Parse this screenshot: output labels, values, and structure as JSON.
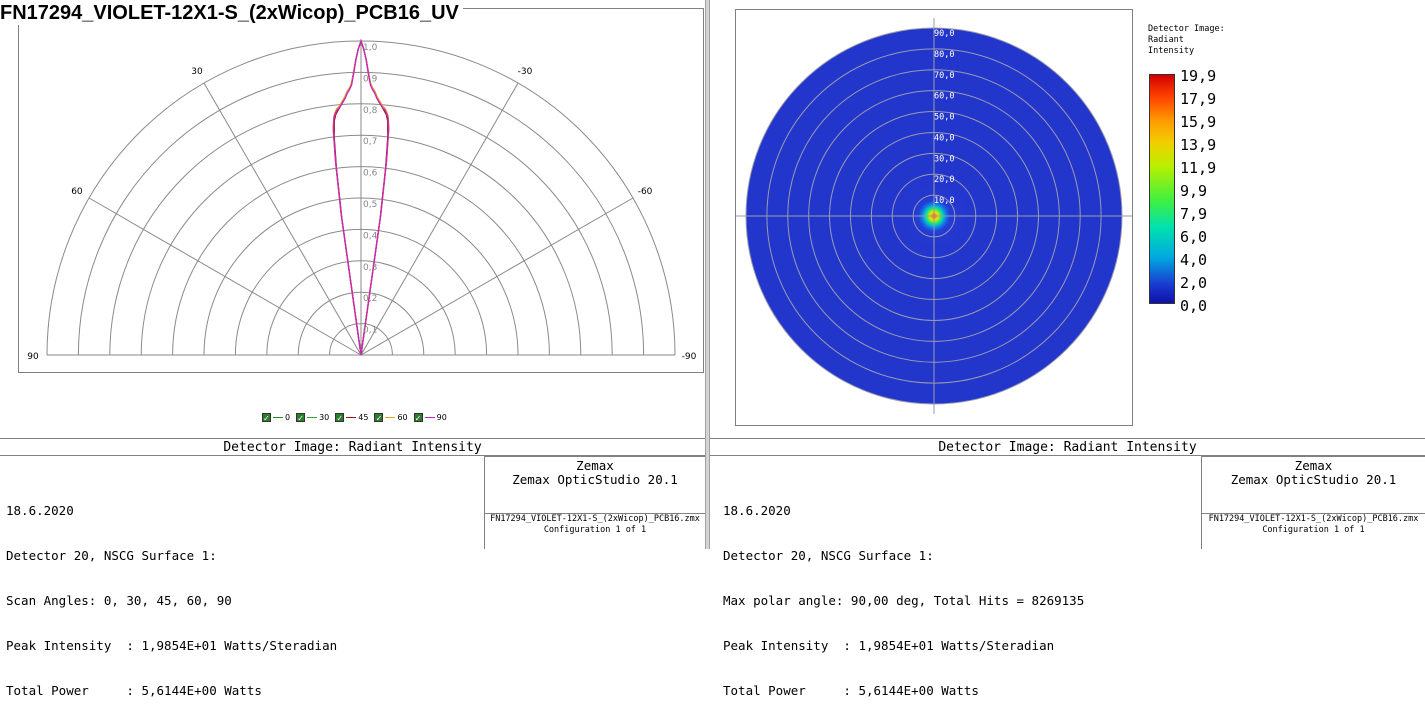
{
  "page_title": "FN17294_VIOLET-12X1-S_(2xWicop)_PCB16_UV",
  "left": {
    "panel_title": "Detector Image: Radiant Intensity",
    "info_lines": [
      "18.6.2020",
      "Detector 20, NSCG Surface 1:",
      "Scan Angles: 0, 30, 45, 60, 90",
      "Peak Intensity  : 1,9854E+01 Watts/Steradian",
      "Total Power     : 5,6144E+00 Watts"
    ],
    "credit_1": "Zemax",
    "credit_2": "Zemax OpticStudio 20.1",
    "file_name": "FN17294_VIOLET-12X1-S_(2xWicop)_PCB16.zmx",
    "config": "Configuration 1 of 1"
  },
  "right": {
    "panel_title": "Detector Image: Radiant Intensity",
    "info_lines": [
      "18.6.2020",
      "Detector 20, NSCG Surface 1:",
      "Max polar angle: 90,00 deg, Total Hits = 8269135",
      "Peak Intensity  : 1,9854E+01 Watts/Steradian",
      "Total Power     : 5,6144E+00 Watts"
    ],
    "credit_1": "Zemax",
    "credit_2": "Zemax OpticStudio 20.1",
    "file_name": "FN17294_VIOLET-12X1-S_(2xWicop)_PCB16.zmx",
    "config": "Configuration 1 of 1"
  },
  "colorbar": {
    "title_lines": [
      "Detector Image:",
      "Radiant",
      "Intensity"
    ],
    "labels": [
      "19,9",
      "17,9",
      "15,9",
      "13,9",
      "11,9",
      "9,9",
      "7,9",
      "6,0",
      "4,0",
      "2,0",
      "0,0"
    ]
  },
  "chart_data": [
    {
      "type": "polar-line",
      "title": "",
      "angle_labels": [
        "90",
        "60",
        "30",
        "-30",
        "-60",
        "-90"
      ],
      "radial_labels": [
        "0,1",
        "0,2",
        "0,3",
        "0,4",
        "0,5",
        "0,6",
        "0,7",
        "0,8",
        "0,9",
        "1,0"
      ],
      "radial_range": [
        0,
        1
      ],
      "angle_range": [
        -90,
        90
      ],
      "series": [
        {
          "name": "0",
          "color": "#1e8c1e",
          "angle": [
            -8.5,
            -8,
            -7.5,
            -7,
            -6.5,
            -6,
            -5.5,
            -5,
            -4.5,
            -4,
            -3.5,
            -3,
            -2.5,
            -2,
            -1.5,
            -1,
            -0.5,
            0,
            0.5,
            1,
            1.5,
            2,
            2.5,
            3,
            3.5,
            4,
            4.5,
            5,
            5.5,
            6,
            6.5,
            7,
            7.5,
            8,
            8.5
          ],
          "r": [
            0.0,
            0.45,
            0.62,
            0.72,
            0.76,
            0.775,
            0.785,
            0.79,
            0.8,
            0.81,
            0.82,
            0.84,
            0.85,
            0.865,
            0.9,
            0.94,
            0.975,
            1.0,
            0.975,
            0.94,
            0.9,
            0.865,
            0.85,
            0.84,
            0.82,
            0.81,
            0.8,
            0.79,
            0.785,
            0.775,
            0.76,
            0.72,
            0.62,
            0.45,
            0.0
          ]
        },
        {
          "name": "30",
          "color": "#3aa33a",
          "angle": [
            -8.5,
            -8,
            -7.5,
            -7,
            -6.5,
            -6,
            -5.5,
            -5,
            -4.5,
            -4,
            -3.5,
            -3,
            -2.5,
            -2,
            -1.5,
            -1,
            -0.5,
            0,
            0.5,
            1,
            1.5,
            2,
            2.5,
            3,
            3.5,
            4,
            4.5,
            5,
            5.5,
            6,
            6.5,
            7,
            7.5,
            8,
            8.5
          ],
          "r": [
            0.0,
            0.44,
            0.61,
            0.71,
            0.755,
            0.77,
            0.78,
            0.79,
            0.8,
            0.81,
            0.825,
            0.84,
            0.85,
            0.865,
            0.9,
            0.94,
            0.975,
            1.0,
            0.975,
            0.94,
            0.9,
            0.865,
            0.85,
            0.84,
            0.825,
            0.81,
            0.8,
            0.79,
            0.78,
            0.77,
            0.755,
            0.71,
            0.61,
            0.44,
            0.0
          ]
        },
        {
          "name": "45",
          "color": "#8b1a1a",
          "angle": [
            -8.5,
            -8,
            -7.5,
            -7,
            -6.5,
            -6,
            -5.5,
            -5,
            -4.5,
            -4,
            -3.5,
            -3,
            -2.5,
            -2,
            -1.5,
            -1,
            -0.5,
            0,
            0.5,
            1,
            1.5,
            2,
            2.5,
            3,
            3.5,
            4,
            4.5,
            5,
            5.5,
            6,
            6.5,
            7,
            7.5,
            8,
            8.5
          ],
          "r": [
            0.0,
            0.44,
            0.6,
            0.7,
            0.75,
            0.77,
            0.78,
            0.79,
            0.8,
            0.81,
            0.825,
            0.84,
            0.85,
            0.865,
            0.9,
            0.94,
            0.975,
            1.0,
            0.975,
            0.94,
            0.9,
            0.865,
            0.85,
            0.84,
            0.825,
            0.81,
            0.8,
            0.79,
            0.78,
            0.77,
            0.75,
            0.7,
            0.6,
            0.44,
            0.0
          ]
        },
        {
          "name": "60",
          "color": "#e0a020",
          "angle": [
            -8.5,
            -8,
            -7.5,
            -7,
            -6.5,
            -6,
            -5.5,
            -5,
            -4.5,
            -4,
            -3.5,
            -3,
            -2.5,
            -2,
            -1.5,
            -1,
            -0.5,
            0,
            0.5,
            1,
            1.5,
            2,
            2.5,
            3,
            3.5,
            4,
            4.5,
            5,
            5.5,
            6,
            6.5,
            7,
            7.5,
            8,
            8.5
          ],
          "r": [
            0.0,
            0.46,
            0.63,
            0.73,
            0.765,
            0.78,
            0.79,
            0.795,
            0.805,
            0.815,
            0.825,
            0.84,
            0.85,
            0.865,
            0.9,
            0.94,
            0.975,
            1.0,
            0.975,
            0.94,
            0.9,
            0.865,
            0.85,
            0.84,
            0.825,
            0.815,
            0.805,
            0.795,
            0.79,
            0.78,
            0.765,
            0.73,
            0.63,
            0.46,
            0.0
          ]
        },
        {
          "name": "90",
          "color": "#d020c0",
          "angle": [
            -8.5,
            -8,
            -7.5,
            -7,
            -6.5,
            -6,
            -5.5,
            -5,
            -4.5,
            -4,
            -3.5,
            -3,
            -2.5,
            -2,
            -1.5,
            -1,
            -0.5,
            0,
            0.5,
            1,
            1.5,
            2,
            2.5,
            3,
            3.5,
            4,
            4.5,
            5,
            5.5,
            6,
            6.5,
            7,
            7.5,
            8,
            8.5
          ],
          "r": [
            0.0,
            0.45,
            0.62,
            0.72,
            0.76,
            0.775,
            0.785,
            0.79,
            0.8,
            0.81,
            0.82,
            0.835,
            0.845,
            0.86,
            0.895,
            0.94,
            0.975,
            1.0,
            0.975,
            0.94,
            0.895,
            0.86,
            0.845,
            0.835,
            0.82,
            0.81,
            0.8,
            0.79,
            0.785,
            0.775,
            0.76,
            0.72,
            0.62,
            0.45,
            0.0
          ]
        }
      ],
      "legend": "bottom-center"
    },
    {
      "type": "heatmap",
      "title": "",
      "projection": "polar",
      "polar_range_deg": [
        0,
        90
      ],
      "ring_labels": [
        "10,0",
        "20,0",
        "30,0",
        "40,0",
        "50,0",
        "60,0",
        "70,0",
        "80,0",
        "90,0"
      ],
      "value_range": [
        0,
        19.9
      ],
      "peak_value": 19.854,
      "peak_polar_deg": 0,
      "half_width_deg": 8
    }
  ]
}
